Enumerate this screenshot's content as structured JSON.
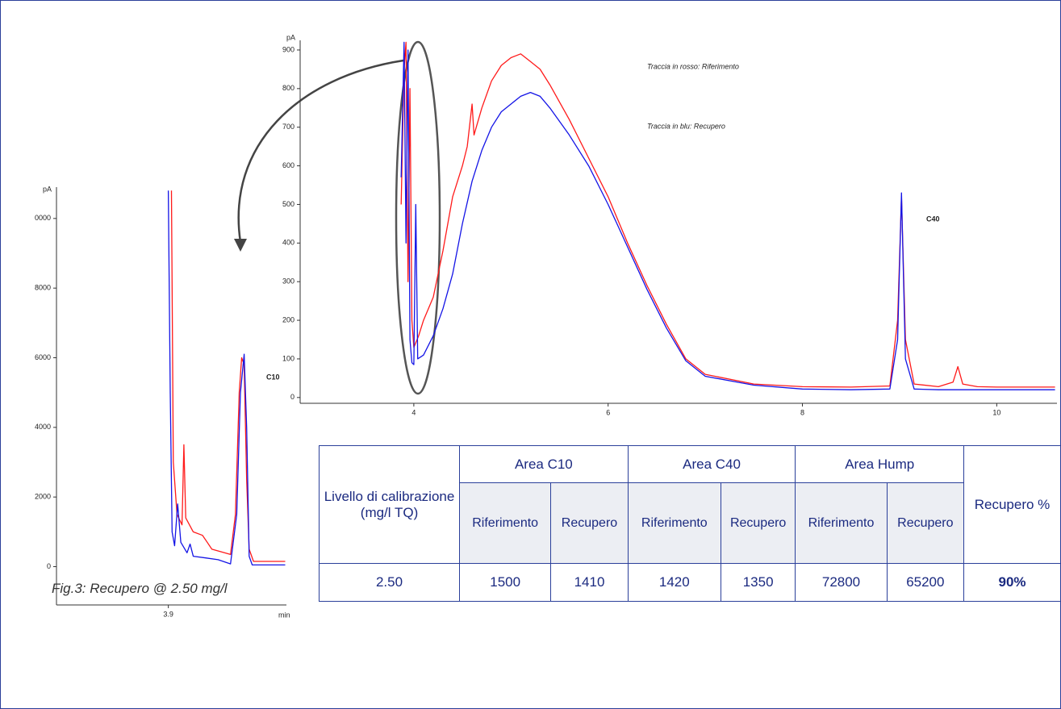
{
  "chart_data": [
    {
      "type": "line",
      "y_label": "pA",
      "xlim": [
        2.83,
        10.62
      ],
      "ylim": [
        -15,
        925
      ],
      "xticks": [
        4,
        6,
        8,
        10
      ],
      "yticks": [
        0,
        100,
        200,
        300,
        400,
        500,
        600,
        700,
        800,
        900
      ],
      "annotations": [
        "C40"
      ],
      "series": [
        {
          "name": "Traccia in rosso: Riferimento",
          "color": "#ff1a1a",
          "x": [
            3.87,
            3.9,
            3.92,
            3.94,
            3.96,
            3.98,
            4.0,
            4.05,
            4.1,
            4.2,
            4.3,
            4.4,
            4.5,
            4.55,
            4.6,
            4.62,
            4.7,
            4.8,
            4.9,
            5.0,
            5.1,
            5.2,
            5.3,
            5.4,
            5.6,
            5.8,
            6.0,
            6.2,
            6.4,
            6.6,
            6.8,
            7.0,
            7.5,
            8.0,
            8.5,
            8.9,
            8.98,
            9.02,
            9.06,
            9.15,
            9.4,
            9.55,
            9.6,
            9.65,
            9.8,
            10.0,
            10.6
          ],
          "values": [
            500,
            850,
            920,
            300,
            800,
            200,
            130,
            160,
            200,
            260,
            380,
            520,
            600,
            650,
            760,
            680,
            750,
            820,
            860,
            880,
            890,
            870,
            850,
            810,
            720,
            620,
            520,
            400,
            290,
            190,
            100,
            60,
            35,
            28,
            27,
            30,
            200,
            520,
            150,
            35,
            28,
            40,
            80,
            35,
            28,
            27,
            27
          ]
        },
        {
          "name": "Traccia in blu: Recupero",
          "color": "#1414e6",
          "x": [
            3.87,
            3.9,
            3.92,
            3.94,
            3.96,
            3.98,
            4.0,
            4.02,
            4.04,
            4.1,
            4.2,
            4.3,
            4.4,
            4.5,
            4.6,
            4.7,
            4.8,
            4.9,
            5.0,
            5.1,
            5.2,
            5.3,
            5.4,
            5.6,
            5.8,
            6.0,
            6.2,
            6.4,
            6.6,
            6.8,
            7.0,
            7.5,
            8.0,
            8.5,
            8.9,
            8.98,
            9.02,
            9.06,
            9.15,
            9.4,
            9.6,
            10.0,
            10.6
          ],
          "values": [
            570,
            920,
            400,
            900,
            150,
            90,
            85,
            500,
            100,
            110,
            160,
            230,
            320,
            450,
            560,
            640,
            700,
            740,
            760,
            780,
            790,
            780,
            750,
            680,
            600,
            500,
            390,
            280,
            180,
            95,
            55,
            32,
            22,
            20,
            22,
            150,
            530,
            100,
            22,
            20,
            20,
            20,
            20
          ]
        }
      ]
    },
    {
      "type": "line",
      "y_label": "pA",
      "x_label": "min",
      "xlim": [
        3.72,
        4.09
      ],
      "ylim": [
        -1100,
        10900
      ],
      "xticks": [
        3.9
      ],
      "yticks": [
        0,
        2000,
        4000,
        6000,
        8000,
        {
          "value": 10000,
          "label": "0000"
        }
      ],
      "annotations": [
        "C10"
      ],
      "series": [
        {
          "color": "#ff1a1a",
          "x": [
            3.905,
            3.908,
            3.914,
            3.922,
            3.925,
            3.928,
            3.94,
            3.955,
            3.97,
            4.0,
            4.008,
            4.014,
            4.018,
            4.022,
            4.026,
            4.03,
            4.037,
            4.088
          ],
          "values": [
            10800,
            3000,
            1500,
            1200,
            3500,
            1400,
            1000,
            900,
            500,
            350,
            1500,
            5000,
            6000,
            5800,
            2500,
            500,
            150,
            150
          ]
        },
        {
          "color": "#1414e6",
          "x": [
            3.9,
            3.903,
            3.906,
            3.91,
            3.915,
            3.92,
            3.93,
            3.935,
            3.94,
            3.96,
            3.98,
            4.0,
            4.01,
            4.016,
            4.022,
            4.026,
            4.03,
            4.035,
            4.088
          ],
          "values": [
            10800,
            5000,
            1000,
            600,
            1800,
            700,
            400,
            650,
            300,
            250,
            200,
            80,
            1500,
            5000,
            6100,
            4000,
            300,
            50,
            50
          ]
        }
      ]
    }
  ],
  "table": {
    "header": [
      "Livello di calibrazione (mg/l TQ)",
      "Area C10",
      "Area C40",
      "Area Hump",
      "Recupero %"
    ],
    "subheader": [
      "Riferimento",
      "Recupero",
      "Riferimento",
      "Recupero",
      "Riferimento",
      "Recupero"
    ],
    "rows": [
      [
        "2.50",
        "1500",
        "1410",
        "1420",
        "1350",
        "72800",
        "65200",
        "90%"
      ]
    ]
  },
  "caption": "Fig.3: Recupero @ 2.50 mg/l"
}
